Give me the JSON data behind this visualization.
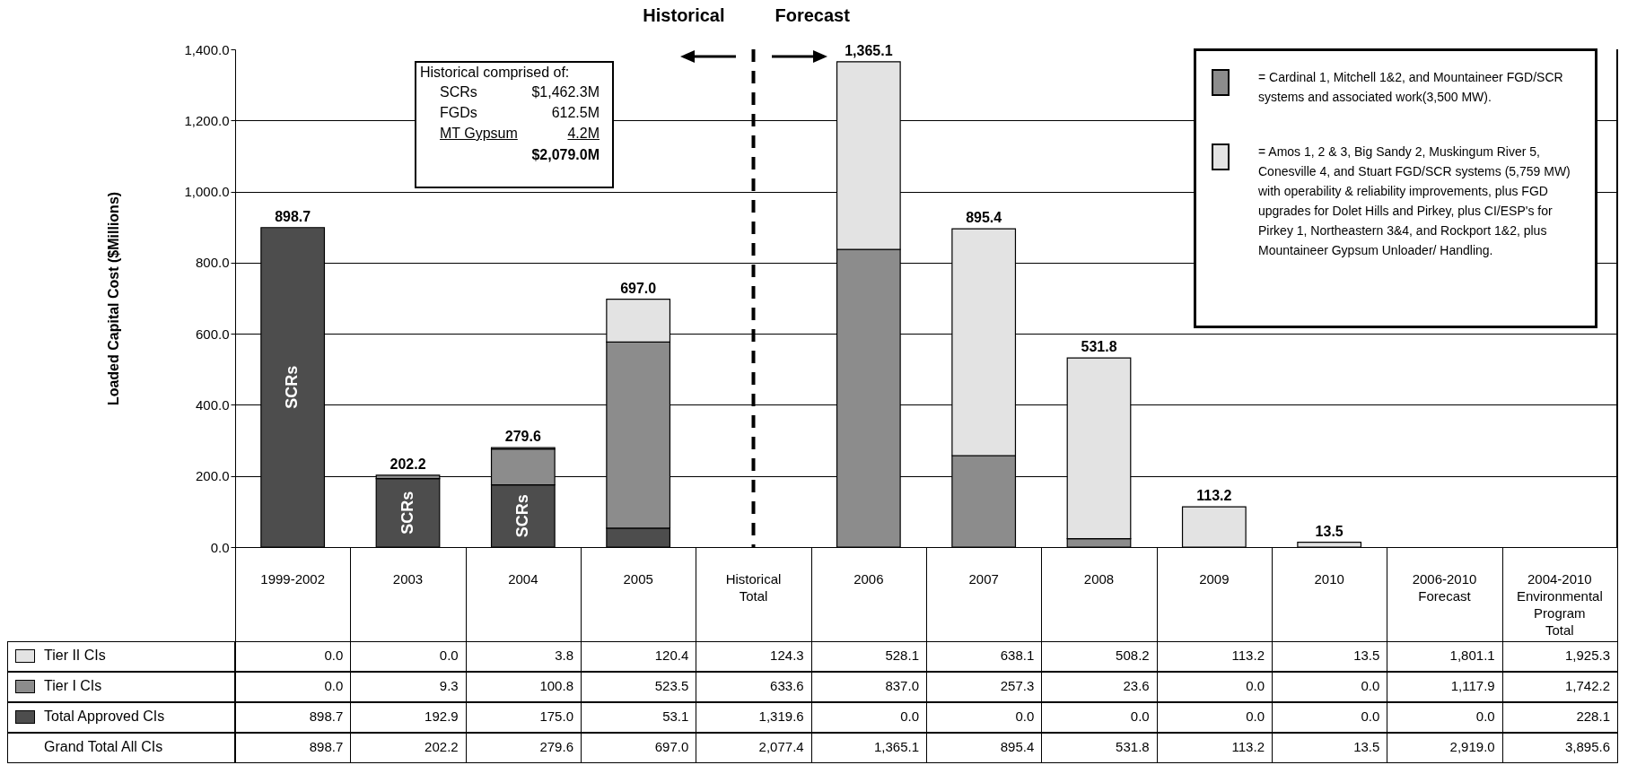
{
  "chart_data": {
    "type": "bar",
    "stacked": true,
    "categories": [
      "1999-2002",
      "2003",
      "2004",
      "2005",
      "Historical Total",
      "2006",
      "2007",
      "2008",
      "2009",
      "2010",
      "2006-2010 Forecast",
      "2004-2010 Environmental Program Total"
    ],
    "series": [
      {
        "name": "Total Approved CIs",
        "color": "#4d4d4d",
        "values": [
          898.7,
          192.9,
          175.0,
          53.1,
          null,
          0.0,
          0.0,
          0.0,
          0.0,
          0.0,
          null,
          null
        ],
        "value_labels": [
          "898.7",
          "192.9",
          "175.0",
          "53.1",
          "1,319.6",
          "0.0",
          "0.0",
          "0.0",
          "0.0",
          "0.0",
          "0.0",
          "228.1"
        ]
      },
      {
        "name": "Tier I CIs",
        "color": "#8c8c8c",
        "values": [
          0.0,
          9.3,
          100.8,
          523.5,
          null,
          837.0,
          257.3,
          23.6,
          0.0,
          0.0,
          null,
          null
        ],
        "value_labels": [
          "0.0",
          "9.3",
          "100.8",
          "523.5",
          "633.6",
          "837.0",
          "257.3",
          "23.6",
          "0.0",
          "0.0",
          "1,117.9",
          "1,742.2"
        ]
      },
      {
        "name": "Tier II CIs",
        "color": "#e3e3e3",
        "values": [
          0.0,
          0.0,
          3.8,
          120.4,
          null,
          528.1,
          638.1,
          508.2,
          113.2,
          13.5,
          null,
          null
        ],
        "value_labels": [
          "0.0",
          "0.0",
          "3.8",
          "120.4",
          "124.3",
          "528.1",
          "638.1",
          "508.2",
          "113.2",
          "13.5",
          "1,801.1",
          "1,925.3"
        ]
      }
    ],
    "totals": [
      "898.7",
      "202.2",
      "279.6",
      "697.0",
      null,
      "1,365.1",
      "895.4",
      "531.8",
      "113.2",
      "13.5",
      null,
      null
    ],
    "ylabel": "Loaded Capital Cost ($Millions)",
    "ylim": [
      0,
      1400
    ],
    "yticks": [
      {
        "value": 0,
        "label": "0.0"
      },
      {
        "value": 200,
        "label": "200.0"
      },
      {
        "value": 400,
        "label": "400.0"
      },
      {
        "value": 600,
        "label": "600.0"
      },
      {
        "value": 800,
        "label": "800.0"
      },
      {
        "value": 1000,
        "label": "1,000.0"
      },
      {
        "value": 1200,
        "label": "1,200.0"
      },
      {
        "value": 1400,
        "label": "1,400.0"
      }
    ],
    "grid": "y",
    "legend": "bottom left",
    "ref_lines": [
      {
        "axis": "x",
        "value": "Historical Total",
        "line_style": "dashed"
      }
    ],
    "annotations": [
      "Historical",
      "Forecast",
      "Historical comprised of:",
      "SCRs",
      "$1,462.3M",
      "FGDs",
      "612.5M",
      "MT Gypsum",
      "4.2M",
      "$2,079.0M",
      "= Cardinal 1, Mitchell 1&2, and Mountaineer FGD/SCR systems and associated work(3,500 MW).",
      "= Amos 1, 2 & 3, Big Sandy 2, Muskingum River 5, Conesville 4, and Stuart FGD/SCR systems (5,759 MW) with operability & reliability improvements, plus FGD upgrades for Dolet Hills and Pirkey, plus CI/ESP's for Pirkey 1, Northeastern 3&4, and Rockport 1&2, plus Mountaineer Gypsum Unloader/ Handling.",
      "Grand Total All CIs",
      "SCRs",
      "SCRs",
      "SCRs",
      "2,077.4",
      "2,919.0",
      "3,895.6"
    ]
  }
}
